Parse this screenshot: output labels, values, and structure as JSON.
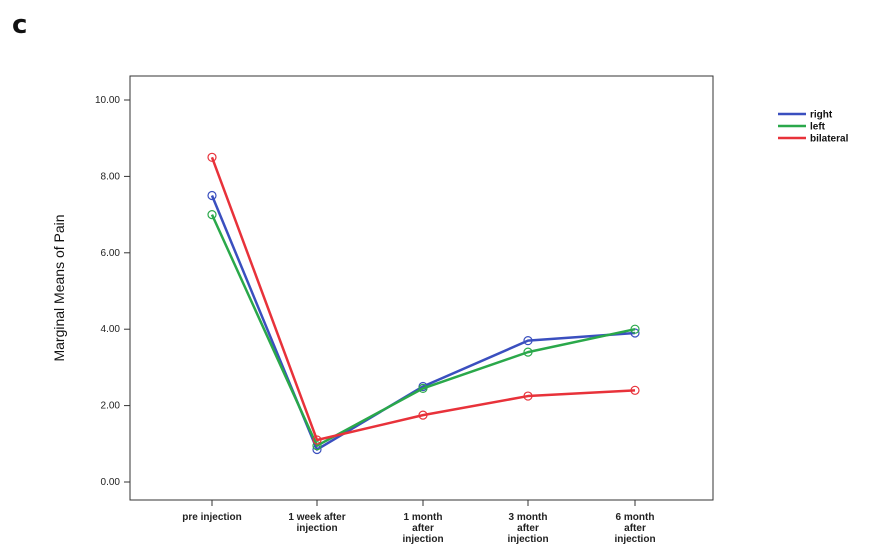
{
  "panel_label": "c",
  "chart_data": {
    "type": "line",
    "title": "",
    "xlabel": "",
    "ylabel": "Marginal Means of Pain",
    "categories": [
      [
        "pre injection"
      ],
      [
        "1 week after",
        "injection"
      ],
      [
        "1 month",
        "after",
        "injection"
      ],
      [
        "3 month",
        "after",
        "injection"
      ],
      [
        "6 month",
        "after",
        "injection"
      ]
    ],
    "ylim": [
      0,
      10
    ],
    "yticks": [
      "0.00",
      "2.00",
      "4.00",
      "6.00",
      "8.00",
      "10.00"
    ],
    "legend_position": "top-right",
    "grid": false,
    "series": [
      {
        "name": "right",
        "color": "#3a4fbf",
        "values": [
          7.5,
          0.85,
          2.5,
          3.7,
          3.9
        ]
      },
      {
        "name": "left",
        "color": "#2aa84a",
        "values": [
          7.0,
          0.95,
          2.45,
          3.4,
          4.0
        ]
      },
      {
        "name": "bilateral",
        "color": "#e8323a",
        "values": [
          8.5,
          1.1,
          1.75,
          2.25,
          2.4
        ]
      }
    ]
  }
}
